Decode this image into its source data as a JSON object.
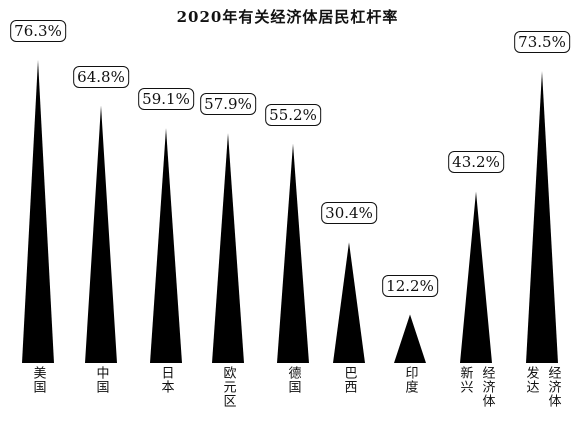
{
  "chart_data": {
    "type": "bar",
    "title": "2020年有关经济体居民杠杆率",
    "categories": [
      "美国",
      "中国",
      "日本",
      "欧元区",
      "德国",
      "巴西",
      "印度",
      "新兴经济体",
      "发达经济体"
    ],
    "category_lines": [
      [
        "美国"
      ],
      [
        "中国"
      ],
      [
        "日本"
      ],
      [
        "欧元区"
      ],
      [
        "德国"
      ],
      [
        "巴西"
      ],
      [
        "印度"
      ],
      [
        "经济体",
        "新兴"
      ],
      [
        "经济体",
        "发达"
      ]
    ],
    "values": [
      76.3,
      64.8,
      59.1,
      57.9,
      55.2,
      30.4,
      12.2,
      43.2,
      73.5
    ],
    "data_labels": [
      "76.3%",
      "64.8%",
      "59.1%",
      "57.9%",
      "55.2%",
      "30.4%",
      "12.2%",
      "43.2%",
      "73.5%"
    ],
    "unit": "%",
    "ylim": [
      0,
      76.3
    ],
    "grid": false,
    "bar_color": "#000000"
  }
}
